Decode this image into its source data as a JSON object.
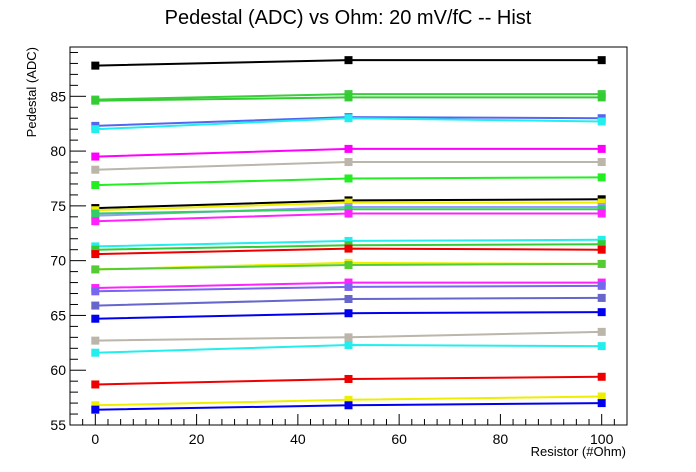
{
  "chart_data": {
    "type": "line",
    "title": "Pedestal (ADC) vs Ohm: 20 mV/fC -- Hist",
    "xlabel": "Resistor (#Ohm)",
    "ylabel": "Pedestal (ADC)",
    "xlim": [
      -5,
      105
    ],
    "ylim": [
      55,
      89.5
    ],
    "x_ticks": [
      0,
      20,
      40,
      60,
      80,
      100
    ],
    "y_ticks": [
      55,
      60,
      65,
      70,
      75,
      80,
      85
    ],
    "x": [
      0,
      50,
      100
    ],
    "grid": false,
    "legend": "none",
    "series": [
      {
        "color": "#000000",
        "values": [
          87.8,
          88.3,
          88.3
        ]
      },
      {
        "color": "#3dcc3d",
        "values": [
          84.7,
          85.2,
          85.2
        ]
      },
      {
        "color": "#33cc33",
        "values": [
          84.6,
          84.9,
          84.9
        ]
      },
      {
        "color": "#5566ee",
        "values": [
          82.3,
          83.1,
          83.0
        ]
      },
      {
        "color": "#22eeee",
        "values": [
          82.0,
          83.0,
          82.7
        ]
      },
      {
        "color": "#ff00ff",
        "values": [
          79.5,
          80.2,
          80.2
        ]
      },
      {
        "color": "#bbb5aa",
        "values": [
          78.3,
          79.0,
          79.0
        ]
      },
      {
        "color": "#22ee22",
        "values": [
          76.9,
          77.5,
          77.6
        ]
      },
      {
        "color": "#000000",
        "values": [
          74.8,
          75.5,
          75.6
        ]
      },
      {
        "color": "#eeee00",
        "values": [
          74.6,
          75.3,
          75.3
        ]
      },
      {
        "color": "#9999ff",
        "values": [
          74.1,
          74.9,
          74.9
        ]
      },
      {
        "color": "#33cc66",
        "values": [
          74.3,
          74.7,
          74.7
        ]
      },
      {
        "color": "#ff22ff",
        "values": [
          73.6,
          74.3,
          74.3
        ]
      },
      {
        "color": "#22eeee",
        "values": [
          71.3,
          71.8,
          71.9
        ]
      },
      {
        "color": "#33cc33",
        "values": [
          71.0,
          71.4,
          71.5
        ]
      },
      {
        "color": "#ee0000",
        "values": [
          70.6,
          71.1,
          71.0
        ]
      },
      {
        "color": "#eeee00",
        "values": [
          69.2,
          69.8,
          69.7
        ]
      },
      {
        "color": "#55cc33",
        "values": [
          69.2,
          69.6,
          69.7
        ]
      },
      {
        "color": "#ff22ff",
        "values": [
          67.5,
          68.0,
          68.0
        ]
      },
      {
        "color": "#7766ee",
        "values": [
          67.2,
          67.6,
          67.7
        ]
      },
      {
        "color": "#6666cc",
        "values": [
          65.9,
          66.5,
          66.6
        ]
      },
      {
        "color": "#0000ee",
        "values": [
          64.7,
          65.2,
          65.3
        ]
      },
      {
        "color": "#bbb5aa",
        "values": [
          62.7,
          63.0,
          63.5
        ]
      },
      {
        "color": "#22eeee",
        "values": [
          61.6,
          62.3,
          62.2
        ]
      },
      {
        "color": "#ee0000",
        "values": [
          58.7,
          59.2,
          59.4
        ]
      },
      {
        "color": "#eeee00",
        "values": [
          56.8,
          57.3,
          57.6
        ]
      },
      {
        "color": "#0000ee",
        "values": [
          56.4,
          56.8,
          57.0
        ]
      }
    ]
  }
}
